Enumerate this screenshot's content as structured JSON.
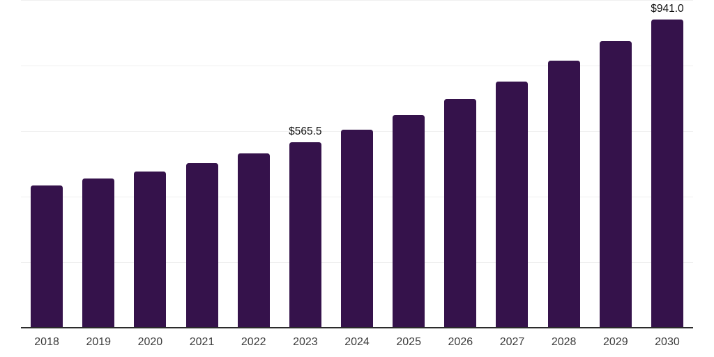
{
  "chart_data": {
    "type": "bar",
    "title": "",
    "xlabel": "",
    "ylabel": "",
    "categories": [
      "2018",
      "2019",
      "2020",
      "2021",
      "2022",
      "2023",
      "2024",
      "2025",
      "2026",
      "2027",
      "2028",
      "2029",
      "2030"
    ],
    "values": [
      434,
      456,
      476,
      503,
      533,
      565.5,
      605,
      650,
      698,
      752,
      814,
      874,
      941
    ],
    "bar_labels": [
      "",
      "",
      "",
      "",
      "",
      "$565.5",
      "",
      "",
      "",
      "",
      "",
      "",
      "$941.0"
    ],
    "ylim": [
      0,
      1000
    ],
    "gridline_values": [
      200,
      400,
      600,
      800,
      1000
    ],
    "grid": "horizontal",
    "legend_position": "none",
    "y_tick_labels_visible": false,
    "colors": {
      "bar": "#35124B",
      "axis_line": "#2b2b2b",
      "gridline": "#f0f0f0",
      "tick_label": "#3d3d3d",
      "value_label": "#111111",
      "background": "#ffffff"
    }
  }
}
